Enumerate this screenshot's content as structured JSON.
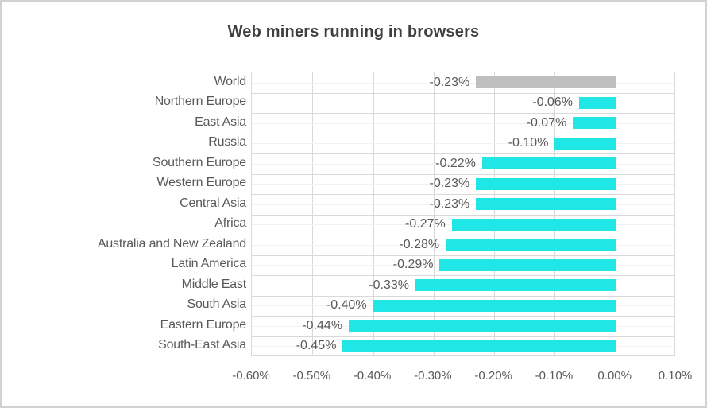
{
  "window": {
    "background": "#ffffff",
    "border_color": "#d2d2d2"
  },
  "chart_data": {
    "type": "bar",
    "orientation": "horizontal",
    "title": "Web miners running in browsers",
    "categories": [
      "World",
      "Northern Europe",
      "East Asia",
      "Russia",
      "Southern Europe",
      "Western Europe",
      "Central Asia",
      "Africa",
      "Australia and New Zealand",
      "Latin America",
      "Middle East",
      "South Asia",
      "Eastern Europe",
      "South-East Asia"
    ],
    "values": [
      -0.23,
      -0.06,
      -0.07,
      -0.1,
      -0.22,
      -0.23,
      -0.23,
      -0.27,
      -0.28,
      -0.29,
      -0.33,
      -0.4,
      -0.44,
      -0.45
    ],
    "data_labels": [
      "-0.23%",
      "-0.06%",
      "-0.07%",
      "-0.10%",
      "-0.22%",
      "-0.23%",
      "-0.23%",
      "-0.27%",
      "-0.28%",
      "-0.29%",
      "-0.33%",
      "-0.40%",
      "-0.44%",
      "-0.45%"
    ],
    "x_ticks": [
      "-0.60%",
      "-0.50%",
      "-0.40%",
      "-0.30%",
      "-0.20%",
      "-0.10%",
      "0.00%",
      "0.10%"
    ],
    "xlim": [
      -0.6,
      0.1
    ],
    "xlabel": "",
    "ylabel": "",
    "legend": "none",
    "grid": "vertical-major and horizontal major+minor gridlines, data labels outside end of bars",
    "colors": {
      "bar_default": "#21e6e6",
      "bar_world": "#bfbfbf",
      "title_text": "#404040",
      "label_text": "#595959",
      "grid_major": "#d9d9d9",
      "grid_minor": "#f2f2f2"
    }
  }
}
